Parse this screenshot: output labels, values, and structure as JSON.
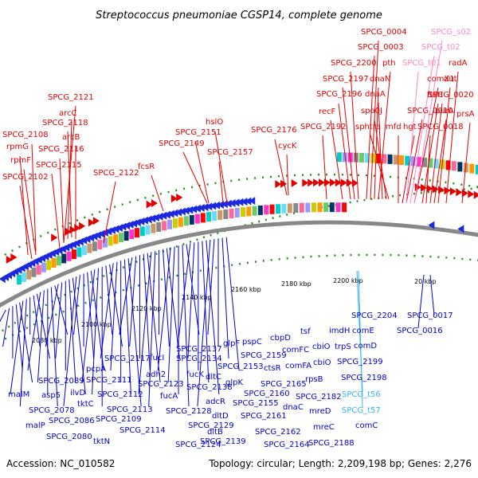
{
  "title": "Streptococcus pneumoniae CGSP14, complete genome",
  "footer": {
    "accession": "Accession: NC_010582",
    "summary": "Topology: circular; Length: 2,209,198 bp; Genes: 2,276"
  },
  "colors": {
    "forward_label": "#e00000",
    "reverse_label": "#0000cc",
    "rrna_label": "#ff88c8",
    "trna_label": "#33b5f0",
    "backbone": "#888888",
    "gc_dots": "#2e8b22"
  },
  "ticks": [
    "2080 kbp",
    "2100 kbp",
    "2120 kbp",
    "2140 kbp",
    "2160 kbp",
    "2180 kbp",
    "2200 kbp",
    "20 kbp"
  ],
  "forward_labels": [
    "SPCG_2121",
    "arcC",
    "SPCG_2118",
    "arcB",
    "SPCG_2108",
    "rpmG",
    "SPCG_2116",
    "rpmF",
    "SPCG_2115",
    "SPCG_2102",
    "SPCG_2122",
    "fcsR",
    "SPCG_2149",
    "SPCG_2151",
    "hslO",
    "SPCG_2157",
    "SPCG_2176",
    "cycK",
    "recF",
    "SPCG_2192",
    "SPCG_2196",
    "SPCG_2197",
    "SPCG_2200",
    "SPCG_0003",
    "SPCG_0004",
    "dnaN",
    "pth",
    "dnaA",
    "spo0J",
    "sphtra",
    "SPCG_0010",
    "mfd",
    "hgt",
    "ftsH",
    "comX1",
    "SPCG_0018",
    "purA",
    "SPCG_0020",
    "dut",
    "radA",
    "prsA"
  ],
  "rrna_labels": [
    "SPCG_s02",
    "SPCG_t02",
    "SPCG_t01"
  ],
  "reverse_labels": [
    "SPCG_2204",
    "imdH",
    "comE",
    "trpS",
    "comD",
    "SPCG_2199",
    "SPCG_2198",
    "comC",
    "SPCG_0017",
    "SPCG_0016",
    "glpF",
    "pspC",
    "cbpD",
    "tsf",
    "cbiO",
    "comFC",
    "ctsR",
    "comFA",
    "rpsB",
    "cbiO",
    "SPCG_2159",
    "SPCG_2153",
    "glpK",
    "SPCG_2165",
    "dnaC",
    "SPCG_2160",
    "SPCG_2155",
    "SPCG_2182",
    "SPCG_2161",
    "mreD",
    "mreC",
    "SPCG_2162",
    "SPCG_2164",
    "SPCG_2188",
    "SPCG_2137",
    "SPCG_2134",
    "fucK",
    "dltC",
    "SPCG_2138",
    "adcR",
    "dltD",
    "dltB",
    "SPCG_2139",
    "fucI",
    "adh2",
    "SPCG_2123",
    "fucA",
    "SPCG_2128",
    "SPCG_2129",
    "SPCG_2124",
    "SPCG_2117",
    "pcpA",
    "SPCG_2111",
    "tktC",
    "SPCG_2112",
    "SPCG_2113",
    "SPCG_2109",
    "SPCG_2114",
    "tktN",
    "SPCG_2089",
    "ilvD",
    "asp5",
    "malM",
    "SPCG_2078",
    "SPCG_2086",
    "malP",
    "SPCG_2080"
  ],
  "trna_labels": [
    "SPCG_t56",
    "SPCG_t57"
  ]
}
